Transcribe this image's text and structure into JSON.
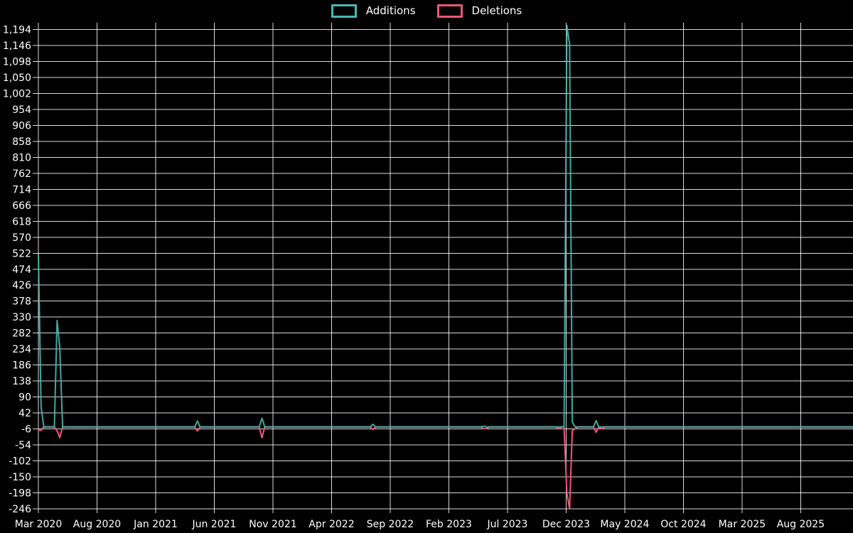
{
  "page": {
    "background_color": "#000000"
  },
  "chart_data": {
    "type": "line",
    "title": "",
    "legend_position": "top-center",
    "background_color": "#000000",
    "text_color": "#ffffff",
    "grid": true,
    "grid_color": "rgba(255,255,255,0.85)",
    "ylim": [
      -246,
      1194
    ],
    "y_tick_step": 48,
    "y_ticks": [
      "1,194",
      "1,146",
      "1,098",
      "1,050",
      "1,002",
      "954",
      "906",
      "858",
      "810",
      "762",
      "714",
      "666",
      "618",
      "570",
      "522",
      "474",
      "426",
      "378",
      "330",
      "282",
      "234",
      "186",
      "138",
      "90",
      "42",
      "-6",
      "-54",
      "-102",
      "-150",
      "-198",
      "-246"
    ],
    "x_ticks": [
      "Mar 2020",
      "Aug 2020",
      "Jan 2021",
      "Jun 2021",
      "Nov 2021",
      "Apr 2022",
      "Sep 2022",
      "Feb 2023",
      "Jul 2023",
      "Dec 2023",
      "May 2024",
      "Oct 2024",
      "Mar 2025",
      "Aug 2025"
    ],
    "x_tick_interval_months": 5,
    "x_start": "2020-03-01",
    "x_end": "2025-12-15",
    "series": [
      {
        "name": "Additions",
        "color": "#4bb8b4",
        "points": [
          [
            "2020-03-01",
            520
          ],
          [
            "2020-03-08",
            60
          ],
          [
            "2020-03-15",
            0
          ],
          [
            "2020-04-12",
            0
          ],
          [
            "2020-04-19",
            320
          ],
          [
            "2020-04-26",
            240
          ],
          [
            "2020-05-03",
            0
          ],
          [
            "2021-04-11",
            0
          ],
          [
            "2021-04-18",
            18
          ],
          [
            "2021-04-25",
            0
          ],
          [
            "2021-09-26",
            0
          ],
          [
            "2021-10-03",
            26
          ],
          [
            "2021-10-10",
            0
          ],
          [
            "2022-07-10",
            0
          ],
          [
            "2022-07-17",
            8
          ],
          [
            "2022-07-24",
            0
          ],
          [
            "2023-04-23",
            0
          ],
          [
            "2023-04-30",
            3
          ],
          [
            "2023-05-07",
            0
          ],
          [
            "2023-11-26",
            0
          ],
          [
            "2023-12-03",
            1206
          ],
          [
            "2023-12-10",
            1150
          ],
          [
            "2023-12-17",
            15
          ],
          [
            "2023-12-24",
            0
          ],
          [
            "2024-02-11",
            0
          ],
          [
            "2024-02-18",
            19
          ],
          [
            "2024-02-25",
            0
          ],
          [
            "2025-12-15",
            0
          ]
        ]
      },
      {
        "name": "Deletions",
        "color": "#f0567a",
        "points": [
          [
            "2020-03-01",
            -10
          ],
          [
            "2020-03-08",
            -10
          ],
          [
            "2020-03-15",
            0
          ],
          [
            "2020-04-12",
            0
          ],
          [
            "2020-04-19",
            -12
          ],
          [
            "2020-04-26",
            -32
          ],
          [
            "2020-05-03",
            0
          ],
          [
            "2021-04-11",
            0
          ],
          [
            "2021-04-18",
            -12
          ],
          [
            "2021-04-25",
            0
          ],
          [
            "2021-09-26",
            0
          ],
          [
            "2021-10-03",
            -32
          ],
          [
            "2021-10-10",
            0
          ],
          [
            "2022-07-10",
            0
          ],
          [
            "2022-07-17",
            -8
          ],
          [
            "2022-07-24",
            0
          ],
          [
            "2023-04-23",
            0
          ],
          [
            "2023-04-30",
            -5
          ],
          [
            "2023-05-07",
            -5
          ],
          [
            "2023-05-14",
            0
          ],
          [
            "2023-11-05",
            0
          ],
          [
            "2023-11-12",
            -6
          ],
          [
            "2023-11-19",
            0
          ],
          [
            "2023-11-26",
            0
          ],
          [
            "2023-12-03",
            -200
          ],
          [
            "2023-12-10",
            -246
          ],
          [
            "2023-12-17",
            -10
          ],
          [
            "2023-12-24",
            -6
          ],
          [
            "2023-12-31",
            0
          ],
          [
            "2024-02-11",
            0
          ],
          [
            "2024-02-18",
            -16
          ],
          [
            "2024-02-25",
            0
          ],
          [
            "2024-03-03",
            -6
          ],
          [
            "2024-03-10",
            0
          ],
          [
            "2025-12-15",
            0
          ]
        ]
      }
    ]
  }
}
